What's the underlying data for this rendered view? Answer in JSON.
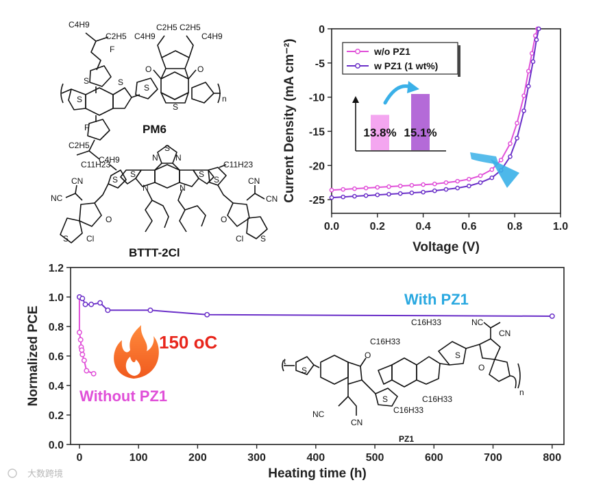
{
  "molecules": {
    "pm6": {
      "name": "PM6",
      "atoms": [
        "C4H9",
        "C2H5",
        "C4H9",
        "C2H5",
        "C2H5",
        "C4H9",
        "F",
        "F",
        "S",
        "S",
        "S",
        "S",
        "S",
        "O",
        "O",
        "C2H5",
        "C4H9",
        "n"
      ]
    },
    "bttt": {
      "name": "BTTT-2Cl",
      "atoms": [
        "S",
        "N",
        "N",
        "N",
        "N",
        "C11H23",
        "C11H23",
        "S",
        "S",
        "S",
        "S",
        "CN",
        "NC",
        "CN",
        "CN",
        "O",
        "O",
        "S",
        "S",
        "Cl",
        "Cl"
      ]
    },
    "pz1": {
      "name": "PZ1",
      "atoms": [
        "C16H33",
        "C16H33",
        "C16H33",
        "C16H33",
        "NC",
        "CN",
        "NC",
        "CN",
        "O",
        "O",
        "S",
        "S",
        "S",
        "n"
      ]
    }
  },
  "watermark": "大数跨境",
  "flame_label": "150 oC",
  "colors": {
    "without": "#e04fd8",
    "with": "#6a2fc8",
    "with_label": "#29a8e0",
    "flame": "#f0441c",
    "arrow": "#3ab0e8",
    "bar_without": "#f4a6f0",
    "bar_with": "#b46ad8"
  },
  "chart_data": [
    {
      "type": "line",
      "title": "",
      "xlabel": "Voltage (V)",
      "ylabel": "Current Density (mA cm⁻²)",
      "xlim": [
        0.0,
        1.0
      ],
      "ylim": [
        -27,
        0
      ],
      "xticks": [
        "0.0",
        "0.2",
        "0.4",
        "0.6",
        "0.8",
        "1.0"
      ],
      "yticks": [
        "0",
        "-5",
        "-10",
        "-15",
        "-20",
        "-25"
      ],
      "legend": "top-left",
      "series": [
        {
          "name": "w/o PZ1",
          "color": "#e04fd8",
          "x": [
            0.0,
            0.05,
            0.1,
            0.15,
            0.2,
            0.25,
            0.3,
            0.35,
            0.4,
            0.45,
            0.5,
            0.55,
            0.6,
            0.65,
            0.7,
            0.74,
            0.78,
            0.81,
            0.84,
            0.86,
            0.875,
            0.89,
            0.9
          ],
          "y": [
            -23.6,
            -23.5,
            -23.4,
            -23.3,
            -23.2,
            -23.1,
            -23.0,
            -22.9,
            -22.8,
            -22.7,
            -22.5,
            -22.3,
            -22.0,
            -21.5,
            -20.6,
            -19.2,
            -16.8,
            -13.8,
            -9.8,
            -6.2,
            -3.6,
            -1.0,
            0.0
          ]
        },
        {
          "name": "w PZ1 (1 wt%)",
          "color": "#6a2fc8",
          "x": [
            0.0,
            0.05,
            0.1,
            0.15,
            0.2,
            0.25,
            0.3,
            0.35,
            0.4,
            0.45,
            0.5,
            0.55,
            0.6,
            0.65,
            0.7,
            0.74,
            0.78,
            0.81,
            0.84,
            0.86,
            0.88,
            0.895,
            0.905
          ],
          "y": [
            -24.7,
            -24.6,
            -24.5,
            -24.4,
            -24.3,
            -24.2,
            -24.1,
            -24.0,
            -23.9,
            -23.7,
            -23.5,
            -23.3,
            -23.0,
            -22.5,
            -21.8,
            -20.7,
            -18.7,
            -16.0,
            -12.0,
            -8.4,
            -4.8,
            -1.6,
            0.0
          ]
        }
      ],
      "inset": {
        "type": "bar",
        "categories": [
          "w/o PZ1",
          "w PZ1"
        ],
        "values": [
          13.8,
          15.1
        ],
        "labels": [
          "13.8%",
          "15.1%"
        ]
      }
    },
    {
      "type": "line",
      "title": "",
      "xlabel": "Heating time (h)",
      "ylabel": "Normalized PCE",
      "xlim": [
        -15,
        820
      ],
      "ylim": [
        0.0,
        1.2
      ],
      "xticks": [
        "0",
        "100",
        "200",
        "300",
        "400",
        "500",
        "600",
        "700",
        "800"
      ],
      "yticks": [
        "0.0",
        "0.2",
        "0.4",
        "0.6",
        "0.8",
        "1.0",
        "1.2"
      ],
      "series": [
        {
          "name": "Without PZ1",
          "color": "#e04fd8",
          "x": [
            0,
            0,
            2,
            3,
            4,
            5,
            8,
            12,
            24
          ],
          "y": [
            1.0,
            0.76,
            0.71,
            0.66,
            0.64,
            0.61,
            0.57,
            0.5,
            0.48
          ]
        },
        {
          "name": "With PZ1",
          "color": "#6a2fc8",
          "x": [
            0,
            5,
            10,
            20,
            35,
            48,
            120,
            216,
            800
          ],
          "y": [
            1.0,
            0.99,
            0.95,
            0.95,
            0.96,
            0.91,
            0.91,
            0.88,
            0.87
          ]
        }
      ]
    }
  ]
}
